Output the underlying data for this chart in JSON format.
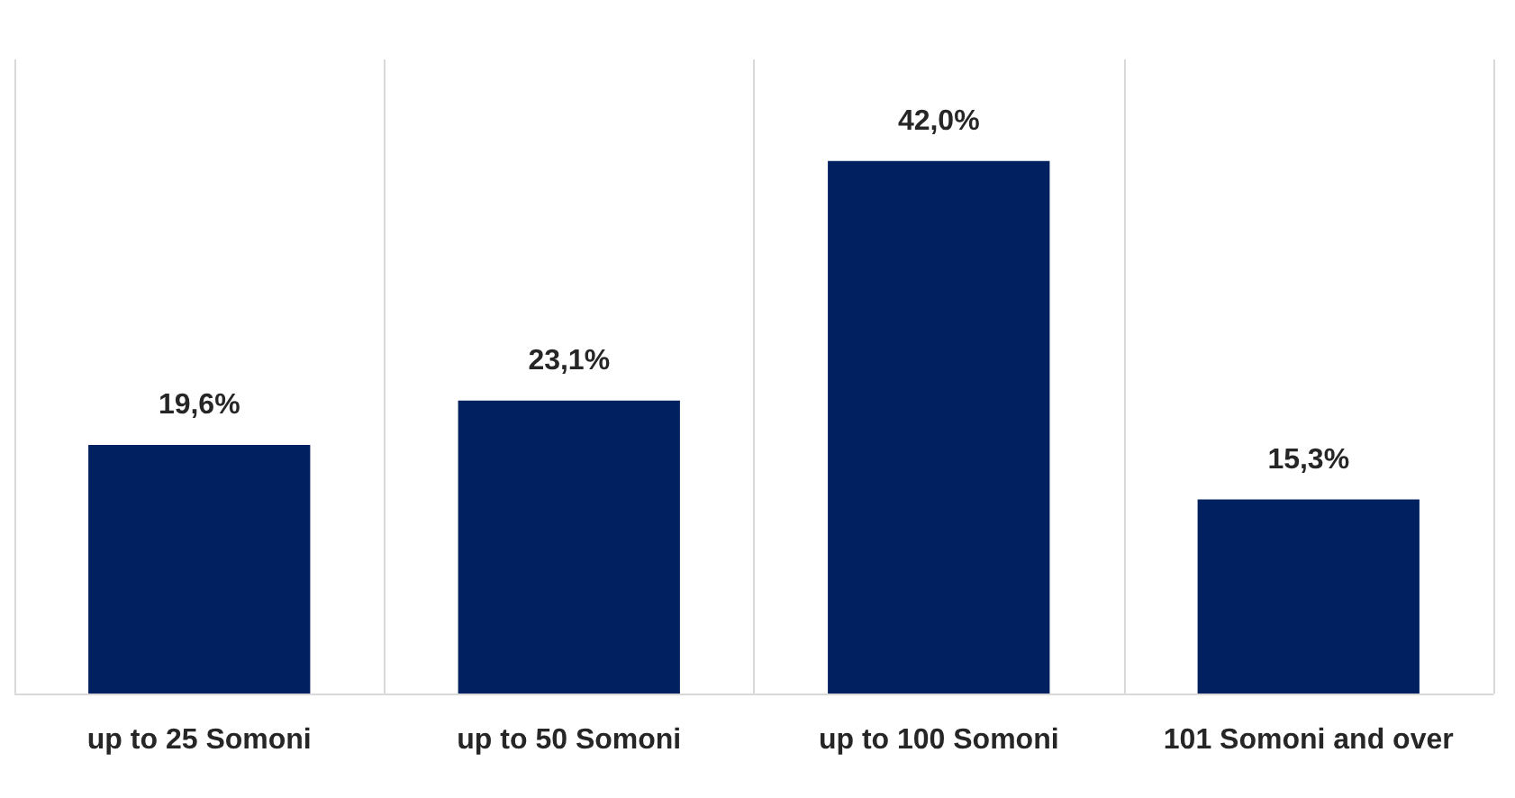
{
  "chart_data": {
    "type": "bar",
    "categories": [
      "up to 25 Somoni",
      "up to 50 Somoni",
      "up to 100 Somoni",
      "101 Somoni and over"
    ],
    "values": [
      19.6,
      23.1,
      42.0,
      15.3
    ],
    "value_labels": [
      "19,6%",
      "23,1%",
      "42,0%",
      "15,3%"
    ],
    "color": "#002060",
    "grid": "x"
  }
}
